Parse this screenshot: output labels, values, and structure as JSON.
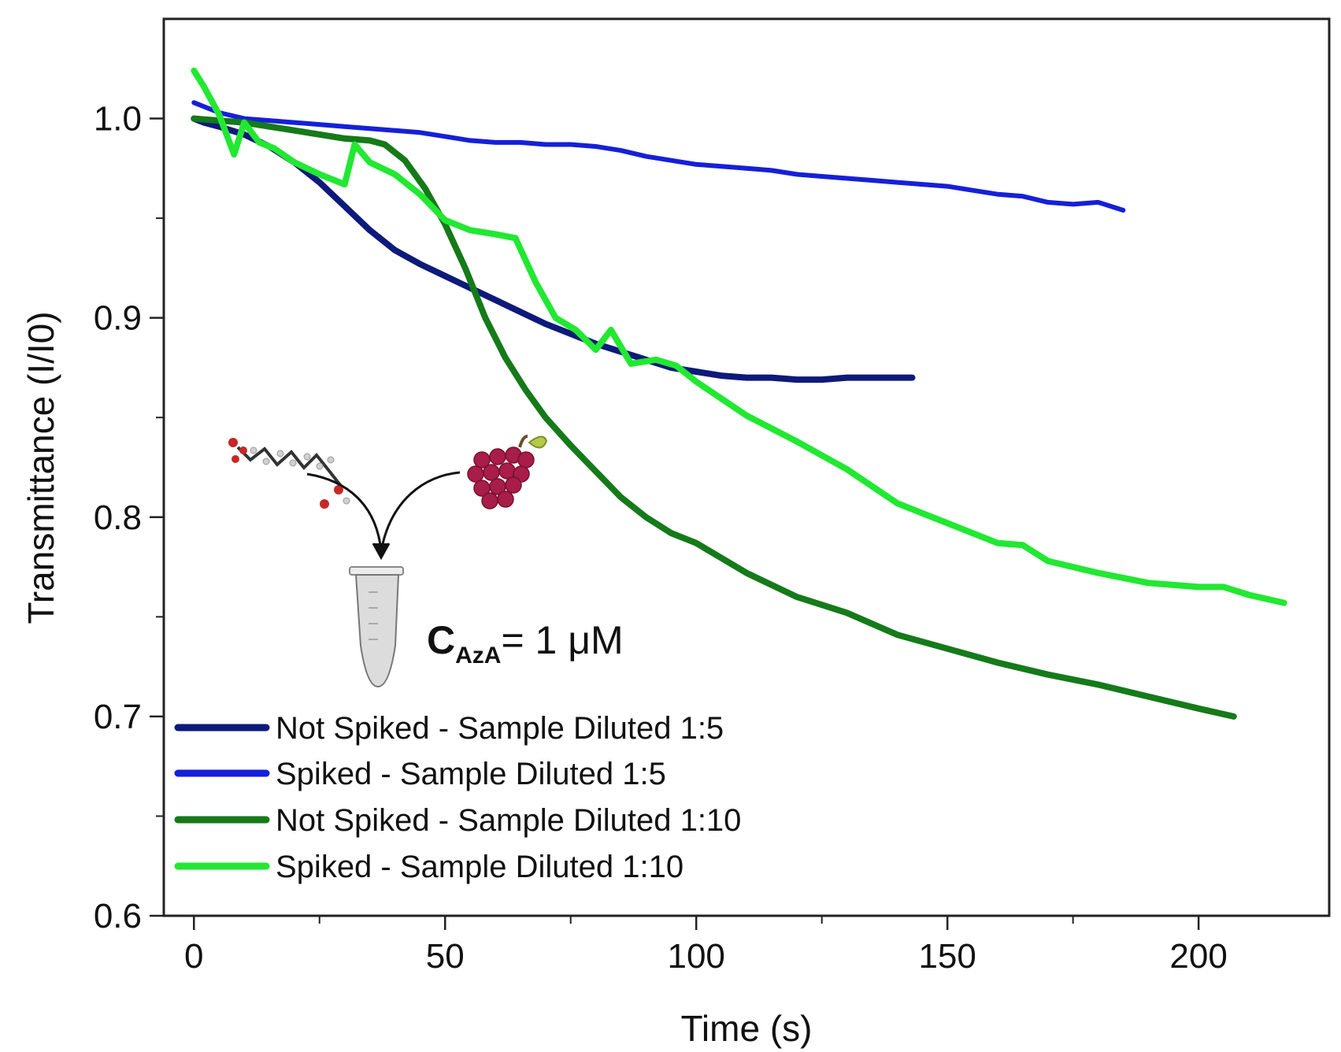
{
  "chart_data": {
    "type": "line",
    "title": "",
    "xlabel": "Time (s)",
    "ylabel": "Transmittance (I/I0)",
    "xlim": [
      -6,
      226
    ],
    "ylim": [
      0.6,
      1.05
    ],
    "xticks": [
      0,
      50,
      100,
      150,
      200
    ],
    "xtick_labels": [
      "0",
      "50",
      "100",
      "150",
      "200"
    ],
    "yticks": [
      0.6,
      0.7,
      0.8,
      0.9,
      1.0
    ],
    "ytick_labels": [
      "0.6",
      "0.7",
      "0.8",
      "0.9",
      "1.0"
    ],
    "legend_position": "bottom-left",
    "annotation": {
      "c_symbol": "C",
      "c_subscript": "AzA",
      "c_value": "= 1 μM"
    },
    "series": [
      {
        "name": "Not Spiked - Sample Diluted 1:5",
        "color": "#0d1a7a",
        "x": [
          0,
          2,
          5,
          10,
          15,
          20,
          25,
          30,
          35,
          40,
          45,
          50,
          55,
          60,
          65,
          70,
          75,
          80,
          85,
          90,
          95,
          100,
          105,
          110,
          115,
          120,
          125,
          130,
          135,
          140,
          143
        ],
        "y": [
          1.0,
          0.998,
          0.996,
          0.992,
          0.986,
          0.978,
          0.968,
          0.956,
          0.944,
          0.934,
          0.927,
          0.921,
          0.915,
          0.909,
          0.903,
          0.897,
          0.892,
          0.887,
          0.883,
          0.879,
          0.875,
          0.873,
          0.871,
          0.87,
          0.87,
          0.869,
          0.869,
          0.87,
          0.87,
          0.87,
          0.87
        ]
      },
      {
        "name": "Spiked - Sample Diluted 1:5",
        "color": "#1520d8",
        "x": [
          0,
          5,
          10,
          15,
          20,
          25,
          30,
          35,
          40,
          45,
          50,
          55,
          60,
          65,
          70,
          75,
          80,
          85,
          90,
          95,
          100,
          105,
          110,
          115,
          120,
          125,
          130,
          135,
          140,
          145,
          150,
          155,
          160,
          165,
          170,
          175,
          180,
          185
        ],
        "y": [
          1.008,
          1.003,
          1.0,
          0.999,
          0.998,
          0.997,
          0.996,
          0.995,
          0.994,
          0.993,
          0.991,
          0.989,
          0.988,
          0.988,
          0.987,
          0.987,
          0.986,
          0.984,
          0.981,
          0.979,
          0.977,
          0.976,
          0.975,
          0.974,
          0.972,
          0.971,
          0.97,
          0.969,
          0.968,
          0.967,
          0.966,
          0.964,
          0.962,
          0.961,
          0.958,
          0.957,
          0.958,
          0.954
        ]
      },
      {
        "name": "Not Spiked - Sample Diluted 1:10",
        "color": "#157a1a",
        "x": [
          0,
          5,
          10,
          15,
          20,
          25,
          30,
          35,
          38,
          42,
          46,
          50,
          54,
          58,
          62,
          66,
          70,
          75,
          80,
          85,
          90,
          95,
          100,
          110,
          120,
          130,
          140,
          150,
          160,
          170,
          180,
          190,
          200,
          207
        ],
        "y": [
          1.0,
          0.999,
          0.998,
          0.996,
          0.994,
          0.992,
          0.99,
          0.989,
          0.987,
          0.979,
          0.965,
          0.947,
          0.925,
          0.9,
          0.88,
          0.864,
          0.85,
          0.836,
          0.823,
          0.81,
          0.8,
          0.792,
          0.787,
          0.772,
          0.76,
          0.752,
          0.741,
          0.734,
          0.727,
          0.721,
          0.716,
          0.71,
          0.704,
          0.7
        ]
      },
      {
        "name": "Spiked - Sample Diluted 1:10",
        "color": "#22e832",
        "x": [
          0,
          2,
          5,
          8,
          10,
          13,
          16,
          20,
          25,
          30,
          32,
          35,
          40,
          45,
          50,
          55,
          60,
          64,
          68,
          72,
          76,
          80,
          83,
          87,
          92,
          96,
          100,
          110,
          120,
          130,
          140,
          150,
          160,
          165,
          170,
          180,
          190,
          200,
          205,
          210,
          217
        ],
        "y": [
          1.024,
          1.016,
          1.002,
          0.982,
          0.998,
          0.988,
          0.985,
          0.978,
          0.972,
          0.967,
          0.987,
          0.978,
          0.972,
          0.962,
          0.949,
          0.944,
          0.942,
          0.94,
          0.918,
          0.9,
          0.894,
          0.884,
          0.894,
          0.877,
          0.879,
          0.876,
          0.868,
          0.851,
          0.838,
          0.824,
          0.807,
          0.797,
          0.787,
          0.786,
          0.778,
          0.772,
          0.767,
          0.765,
          0.765,
          0.761,
          0.757
        ]
      }
    ]
  }
}
